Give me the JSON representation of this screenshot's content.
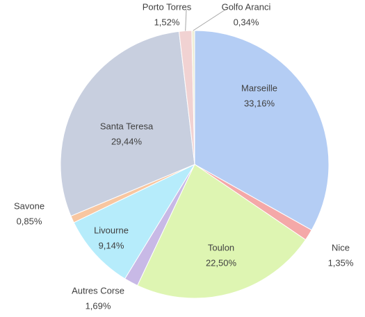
{
  "chart_data": {
    "type": "pie",
    "categories": [
      "Marseille",
      "Nice",
      "Toulon",
      "Autres Corse",
      "Livourne",
      "Savone",
      "Santa Teresa",
      "Porto Torres",
      "Golfo Aranci"
    ],
    "values": [
      33.16,
      1.35,
      22.5,
      1.69,
      9.14,
      0.85,
      29.44,
      1.52,
      0.34
    ],
    "value_labels": [
      "33,16%",
      "1,35%",
      "22,50%",
      "1,69%",
      "9,14%",
      "0,85%",
      "29,44%",
      "1,52%",
      "0,34%"
    ],
    "colors": [
      "#b4cdf4",
      "#f4a8a8",
      "#def5b2",
      "#c8b9e6",
      "#b6ecfb",
      "#f8c6a0",
      "#c8cfdf",
      "#f1d2d2",
      "#eeeed6"
    ]
  }
}
